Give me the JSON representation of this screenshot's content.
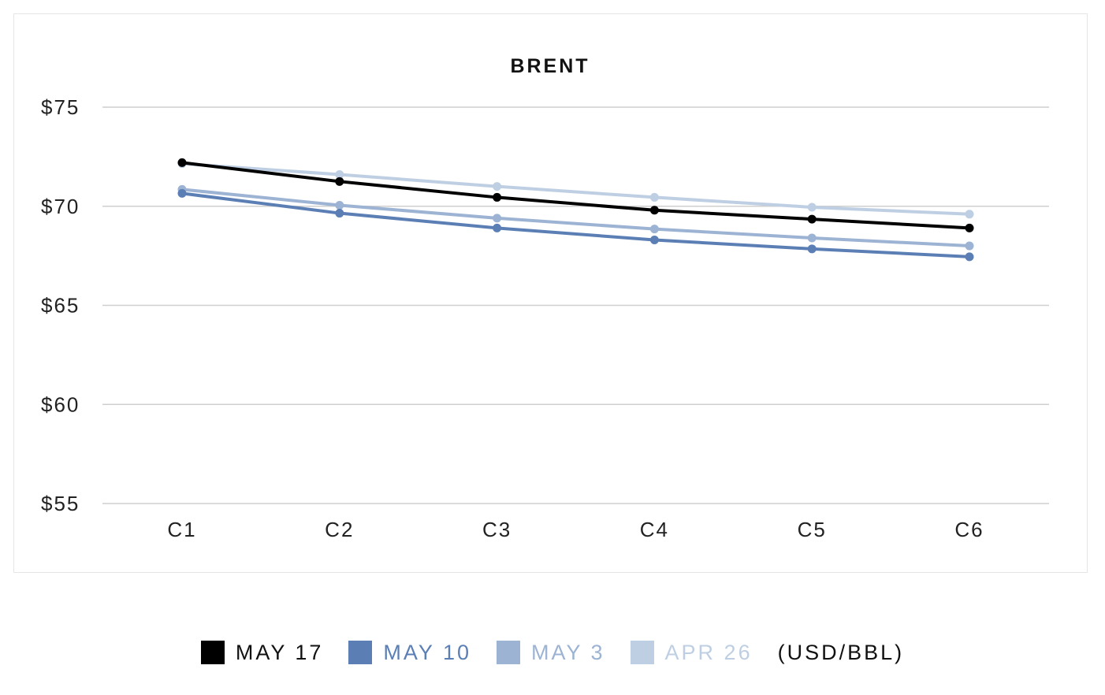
{
  "chart_data": {
    "type": "line",
    "title": "BRENT",
    "categories": [
      "C1",
      "C2",
      "C3",
      "C4",
      "C5",
      "C6"
    ],
    "ylim": [
      55,
      75
    ],
    "yticks": [
      55,
      60,
      65,
      70,
      75
    ],
    "ytick_labels": [
      "$55",
      "$60",
      "$65",
      "$70",
      "$75"
    ],
    "grid": true,
    "legend_position": "bottom-center",
    "unit_label": "(USD/BBL)",
    "series": [
      {
        "name": "MAY 17",
        "color": "#000000",
        "values": [
          72.2,
          71.25,
          70.45,
          69.8,
          69.35,
          68.9
        ]
      },
      {
        "name": "MAY 10",
        "color": "#5b7fb5",
        "values": [
          70.65,
          69.65,
          68.9,
          68.3,
          67.85,
          67.45
        ]
      },
      {
        "name": "MAY 3",
        "color": "#9db3d3",
        "values": [
          70.85,
          70.05,
          69.4,
          68.85,
          68.4,
          68.0
        ]
      },
      {
        "name": "APR 26",
        "color": "#bfcfe3",
        "values": [
          72.15,
          71.6,
          71.0,
          70.45,
          69.95,
          69.6
        ]
      }
    ]
  }
}
